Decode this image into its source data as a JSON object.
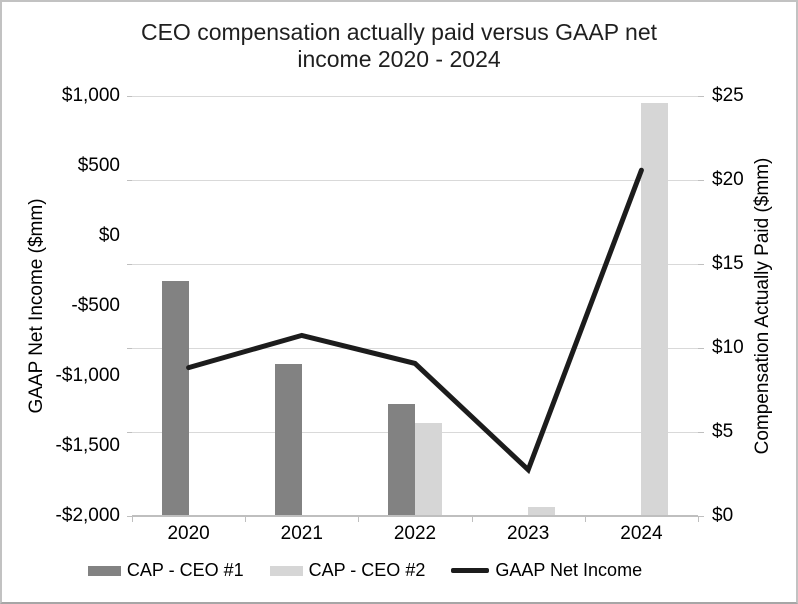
{
  "window": {
    "background": "#ffffff",
    "border_color": "#c2c2c2"
  },
  "chart_data": {
    "type": "combo (bar + line), dual y-axes",
    "title": "CEO compensation actually paid versus GAAP net income 2020 - 2024",
    "title_lines": [
      "CEO compensation actually paid versus GAAP net",
      "income 2020 - 2024"
    ],
    "categories": [
      "2020",
      "2021",
      "2022",
      "2023",
      "2024"
    ],
    "series": [
      {
        "name": "CAP - CEO #1",
        "type": "bar",
        "axis": "right",
        "color": "#828282",
        "values": [
          13.9,
          9.0,
          6.6,
          null,
          null
        ]
      },
      {
        "name": "CAP - CEO #2",
        "type": "bar",
        "axis": "right",
        "color": "#d6d6d6",
        "values": [
          null,
          null,
          5.5,
          0.5,
          24.5
        ]
      },
      {
        "name": "GAAP Net Income",
        "type": "line",
        "axis": "left",
        "color": "#1c1c1c",
        "values": [
          -940,
          -710,
          -910,
          -1670,
          470
        ]
      }
    ],
    "left_axis": {
      "title": "GAAP Net Income ($mm)",
      "min": -2000,
      "max": 1000,
      "tick_labels": [
        "$1,000",
        "$500",
        "$0",
        "-$500",
        "-$1,000",
        "-$1,500",
        "-$2,000"
      ]
    },
    "right_axis": {
      "title": "Compensation Actually Paid ($mm)",
      "min": 0,
      "max": 25,
      "tick_labels": [
        "$25",
        "$20",
        "$15",
        "$10",
        "$5",
        "$0"
      ]
    },
    "x_axis": {
      "tick_labels": [
        "2020",
        "2021",
        "2022",
        "2023",
        "2024"
      ]
    },
    "legend": {
      "position": "bottom",
      "items": [
        {
          "label": "CAP - CEO #1",
          "swatch": "bar",
          "color": "#828282"
        },
        {
          "label": "CAP - CEO #2",
          "swatch": "bar",
          "color": "#d6d6d6"
        },
        {
          "label": "GAAP Net Income",
          "swatch": "line",
          "color": "#1c1c1c"
        }
      ]
    },
    "grid": {
      "horizontal": true,
      "aligned_to": "right axis ($5 intervals)",
      "color": "#d9d9d9"
    }
  }
}
